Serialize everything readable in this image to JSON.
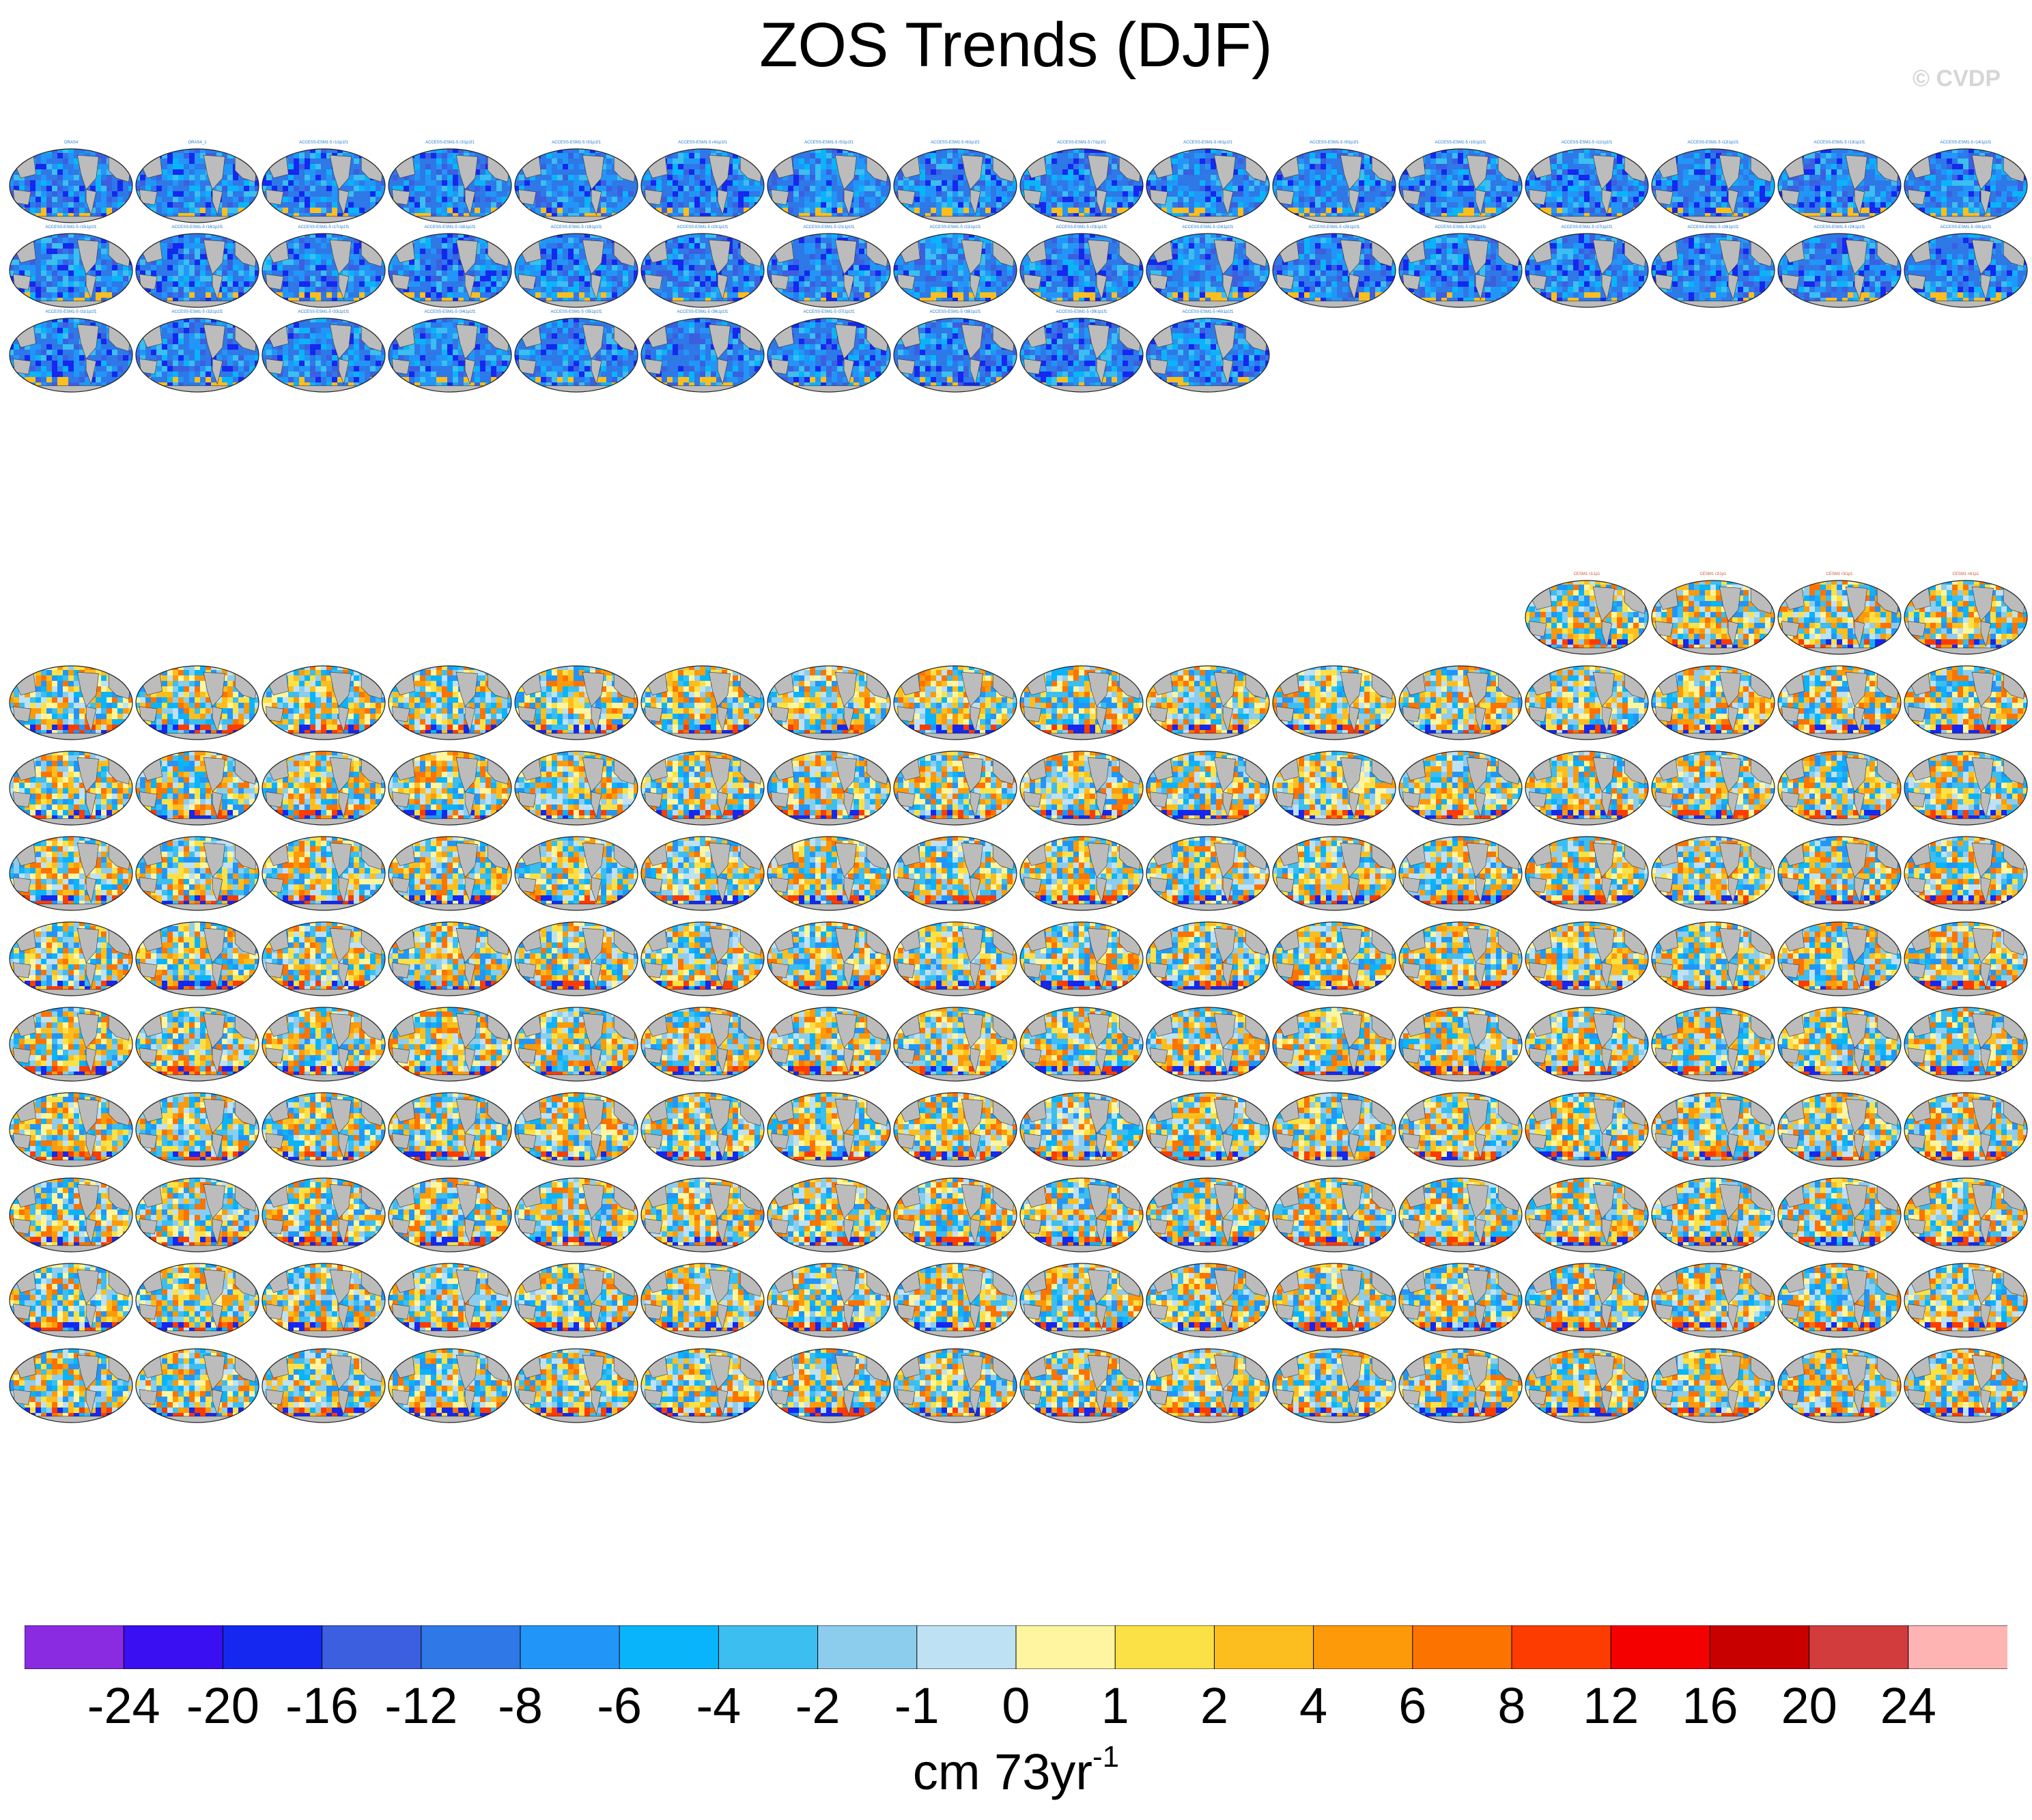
{
  "title": "ZOS Trends (DJF)",
  "credit": "© CVDP",
  "colorbar": {
    "tick_labels": [
      "-24",
      "-20",
      "-16",
      "-12",
      "-8",
      "-6",
      "-4",
      "-2",
      "-1",
      "0",
      "1",
      "2",
      "4",
      "6",
      "8",
      "12",
      "16",
      "20",
      "24"
    ],
    "colors": [
      "#8a2be2",
      "#3a0ff2",
      "#1428f0",
      "#3c5fe0",
      "#2e78e8",
      "#2296f8",
      "#0ab4fa",
      "#3cbef0",
      "#8ccdee",
      "#bee1f4",
      "#fff5a0",
      "#fce146",
      "#fcbe1e",
      "#fc9a0a",
      "#fc7300",
      "#fc3c00",
      "#f50000",
      "#c80000",
      "#d23c3c",
      "#ffb4b4"
    ],
    "units_base": "cm 73yr",
    "units_exponent": "-1"
  },
  "panel_groups": [
    {
      "name": "ACCESS-ESM1-5",
      "style": "cool",
      "rows": [
        {
          "count": 16,
          "labels": [
            "ORAS4",
            "ORAS4_1",
            "ACCESS-ESM1-5 r1i1p1f1",
            "ACCESS-ESM1-5 r2i1p1f1",
            "ACCESS-ESM1-5 r3i1p1f1",
            "ACCESS-ESM1-5 r4i1p1f1",
            "ACCESS-ESM1-5 r5i1p1f1",
            "ACCESS-ESM1-5 r6i1p1f1",
            "ACCESS-ESM1-5 r7i1p1f1",
            "ACCESS-ESM1-5 r8i1p1f1",
            "ACCESS-ESM1-5 r9i1p1f1",
            "ACCESS-ESM1-5 r10i1p1f1",
            "ACCESS-ESM1-5 r11i1p1f1",
            "ACCESS-ESM1-5 r12i1p1f1",
            "ACCESS-ESM1-5 r13i1p1f1",
            "ACCESS-ESM1-5 r14i1p1f1"
          ]
        },
        {
          "count": 16,
          "labels": [
            "ACCESS-ESM1-5 r15i1p1f1",
            "ACCESS-ESM1-5 r16i1p1f1",
            "ACCESS-ESM1-5 r17i1p1f1",
            "ACCESS-ESM1-5 r18i1p1f1",
            "ACCESS-ESM1-5 r19i1p1f1",
            "ACCESS-ESM1-5 r20i1p1f1",
            "ACCESS-ESM1-5 r21i1p1f1",
            "ACCESS-ESM1-5 r22i1p1f1",
            "ACCESS-ESM1-5 r23i1p1f1",
            "ACCESS-ESM1-5 r24i1p1f1",
            "ACCESS-ESM1-5 r25i1p1f1",
            "ACCESS-ESM1-5 r26i1p1f1",
            "ACCESS-ESM1-5 r27i1p1f1",
            "ACCESS-ESM1-5 r28i1p1f1",
            "ACCESS-ESM1-5 r29i1p1f1",
            "ACCESS-ESM1-5 r30i1p1f1"
          ]
        },
        {
          "count": 10,
          "labels": [
            "ACCESS-ESM1-5 r31i1p1f1",
            "ACCESS-ESM1-5 r32i1p1f1",
            "ACCESS-ESM1-5 r33i1p1f1",
            "ACCESS-ESM1-5 r34i1p1f1",
            "ACCESS-ESM1-5 r35i1p1f1",
            "ACCESS-ESM1-5 r36i1p1f1",
            "ACCESS-ESM1-5 r37i1p1f1",
            "ACCESS-ESM1-5 r38i1p1f1",
            "ACCESS-ESM1-5 r39i1p1f1",
            "ACCESS-ESM1-5 r40i1p1f1"
          ]
        }
      ]
    },
    {
      "name": "CESM",
      "style": "warm",
      "rows": [
        {
          "count": 4,
          "align": "right",
          "labels": [
            "CESM1 r1i1p1",
            "CESM1 r2i1p1",
            "CESM1 r3i1p1",
            "CESM1 r4i1p1"
          ]
        },
        {
          "count": 16,
          "labels": []
        },
        {
          "count": 16,
          "labels": []
        },
        {
          "count": 16,
          "labels": []
        },
        {
          "count": 16,
          "labels": []
        },
        {
          "count": 16,
          "labels": []
        },
        {
          "count": 16,
          "labels": []
        },
        {
          "count": 16,
          "labels": []
        },
        {
          "count": 16,
          "labels": []
        },
        {
          "count": 16,
          "labels": []
        }
      ]
    }
  ]
}
